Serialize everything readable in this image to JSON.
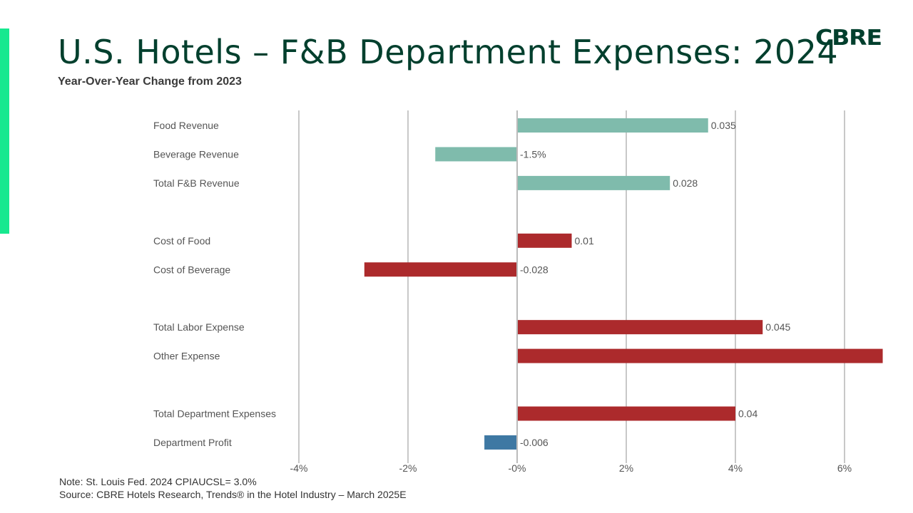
{
  "title": "U.S. Hotels – F&B Department Expenses: 2024",
  "subtitle": "Year-Over-Year Change from 2023",
  "logo": "CBRE",
  "note": "Note:  St. Louis Fed. 2024 CPIAUCSL= 3.0%",
  "source": "Source: CBRE Hotels Research, Trends® in the Hotel Industry – March 2025E",
  "colors": {
    "title": "#003f2d",
    "accent": "#17e88f",
    "revenue": "#7fbbac",
    "expense": "#ac2a2c",
    "profit": "#3e78a3"
  },
  "chart_data": {
    "type": "bar",
    "orientation": "horizontal",
    "xlim": [
      -0.04,
      0.067
    ],
    "xticks": [
      -0.04,
      -0.02,
      0,
      0.02,
      0.04,
      0.06
    ],
    "xtick_labels": [
      "-4%",
      "-2%",
      "-0%",
      "2%",
      "4%",
      "6%"
    ],
    "grid": true,
    "categories": [
      {
        "label": "Food Revenue",
        "value": 0.035,
        "data_label": "0.035",
        "group": 0,
        "kind": "revenue"
      },
      {
        "label": "Beverage Revenue",
        "value": -0.015,
        "data_label": "-1.5%",
        "group": 0,
        "kind": "revenue"
      },
      {
        "label": "Total F&B Revenue",
        "value": 0.028,
        "data_label": "0.028",
        "group": 0,
        "kind": "revenue"
      },
      {
        "label": "Cost of Food",
        "value": 0.01,
        "data_label": "0.01",
        "group": 1,
        "kind": "expense"
      },
      {
        "label": "Cost of Beverage",
        "value": -0.028,
        "data_label": "-0.028",
        "group": 1,
        "kind": "expense"
      },
      {
        "label": "Total Labor Expense",
        "value": 0.045,
        "data_label": "0.045",
        "group": 2,
        "kind": "expense"
      },
      {
        "label": "Other Expense",
        "value": 0.067,
        "data_label": "",
        "group": 2,
        "kind": "expense"
      },
      {
        "label": "Total Department Expenses",
        "value": 0.04,
        "data_label": "0.04",
        "group": 3,
        "kind": "expense"
      },
      {
        "label": "Department Profit",
        "value": -0.006,
        "data_label": "-0.006",
        "group": 3,
        "kind": "profit"
      }
    ]
  }
}
